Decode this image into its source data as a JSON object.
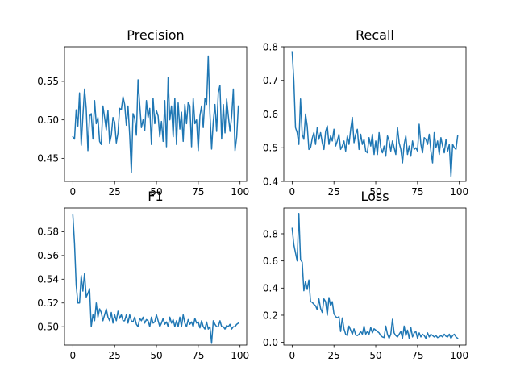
{
  "colors": {
    "line": "#1f77b4",
    "background": "#ffffff",
    "axes": "#000000"
  },
  "chart_data": [
    {
      "type": "line",
      "title": "Precision",
      "xlabel": "",
      "ylabel": "",
      "xlim": [
        -5,
        104
      ],
      "ylim": [
        0.42,
        0.595
      ],
      "xticks": [
        0,
        25,
        50,
        75,
        100
      ],
      "yticks": [
        0.45,
        0.5,
        0.55
      ],
      "ytick_labels": [
        "0.45",
        "0.50",
        "0.55"
      ],
      "grid": false,
      "x_start": 0,
      "y": [
        0.478,
        0.475,
        0.513,
        0.492,
        0.535,
        0.467,
        0.505,
        0.54,
        0.515,
        0.46,
        0.505,
        0.508,
        0.475,
        0.525,
        0.495,
        0.503,
        0.472,
        0.468,
        0.518,
        0.503,
        0.487,
        0.512,
        0.47,
        0.48,
        0.503,
        0.497,
        0.47,
        0.483,
        0.515,
        0.513,
        0.53,
        0.52,
        0.493,
        0.518,
        0.48,
        0.432,
        0.508,
        0.502,
        0.48,
        0.552,
        0.52,
        0.49,
        0.5,
        0.486,
        0.525,
        0.503,
        0.515,
        0.468,
        0.528,
        0.495,
        0.512,
        0.505,
        0.478,
        0.498,
        0.472,
        0.525,
        0.465,
        0.555,
        0.5,
        0.518,
        0.478,
        0.528,
        0.468,
        0.522,
        0.488,
        0.51,
        0.472,
        0.52,
        0.495,
        0.523,
        0.518,
        0.465,
        0.528,
        0.495,
        0.5,
        0.46,
        0.505,
        0.518,
        0.49,
        0.528,
        0.52,
        0.583,
        0.508,
        0.462,
        0.498,
        0.52,
        0.485,
        0.535,
        0.545,
        0.475,
        0.52,
        0.483,
        0.527,
        0.505,
        0.485,
        0.505,
        0.54,
        0.46,
        0.478,
        0.518
      ],
      "tick_labels_x": [
        "0",
        "25",
        "50",
        "75",
        "100"
      ]
    },
    {
      "type": "line",
      "title": "Recall",
      "xlabel": "",
      "ylabel": "",
      "xlim": [
        -5,
        104
      ],
      "ylim": [
        0.4,
        0.8
      ],
      "xticks": [
        0,
        25,
        50,
        75,
        100
      ],
      "yticks": [
        0.4,
        0.5,
        0.6,
        0.7,
        0.8
      ],
      "ytick_labels": [
        "0.4",
        "0.5",
        "0.6",
        "0.7",
        "0.8"
      ],
      "grid": false,
      "x_start": 0,
      "y": [
        0.785,
        0.7,
        0.56,
        0.545,
        0.51,
        0.645,
        0.54,
        0.525,
        0.6,
        0.565,
        0.495,
        0.5,
        0.528,
        0.545,
        0.51,
        0.56,
        0.525,
        0.545,
        0.515,
        0.495,
        0.548,
        0.565,
        0.51,
        0.535,
        0.52,
        0.555,
        0.505,
        0.52,
        0.54,
        0.495,
        0.505,
        0.52,
        0.49,
        0.535,
        0.51,
        0.555,
        0.59,
        0.515,
        0.54,
        0.555,
        0.495,
        0.54,
        0.51,
        0.525,
        0.49,
        0.485,
        0.53,
        0.505,
        0.54,
        0.48,
        0.52,
        0.48,
        0.545,
        0.5,
        0.485,
        0.505,
        0.475,
        0.535,
        0.52,
        0.49,
        0.52,
        0.5,
        0.48,
        0.56,
        0.515,
        0.495,
        0.455,
        0.51,
        0.535,
        0.48,
        0.505,
        0.475,
        0.52,
        0.495,
        0.5,
        0.49,
        0.57,
        0.51,
        0.485,
        0.53,
        0.525,
        0.51,
        0.54,
        0.49,
        0.455,
        0.545,
        0.5,
        0.52,
        0.48,
        0.53,
        0.505,
        0.485,
        0.525,
        0.49,
        0.51,
        0.415,
        0.51,
        0.5,
        0.495,
        0.535
      ],
      "tick_labels_x": [
        "0",
        "25",
        "50",
        "75",
        "100"
      ]
    },
    {
      "type": "line",
      "title": "F1",
      "xlabel": "",
      "ylabel": "",
      "xlim": [
        -5,
        104
      ],
      "ylim": [
        0.4845,
        0.6
      ],
      "xticks": [
        0,
        25,
        50,
        75,
        100
      ],
      "yticks": [
        0.5,
        0.52,
        0.54,
        0.56,
        0.58
      ],
      "ytick_labels": [
        "0.50",
        "0.52",
        "0.54",
        "0.56",
        "0.58"
      ],
      "grid": false,
      "x_start": 0,
      "y": [
        0.594,
        0.57,
        0.535,
        0.52,
        0.52,
        0.543,
        0.53,
        0.545,
        0.525,
        0.528,
        0.532,
        0.5,
        0.51,
        0.505,
        0.52,
        0.508,
        0.515,
        0.512,
        0.505,
        0.51,
        0.515,
        0.508,
        0.505,
        0.512,
        0.503,
        0.51,
        0.505,
        0.513,
        0.507,
        0.51,
        0.505,
        0.505,
        0.51,
        0.503,
        0.51,
        0.505,
        0.504,
        0.508,
        0.502,
        0.5,
        0.507,
        0.505,
        0.508,
        0.503,
        0.506,
        0.505,
        0.5,
        0.508,
        0.503,
        0.504,
        0.51,
        0.505,
        0.5,
        0.503,
        0.507,
        0.502,
        0.504,
        0.5,
        0.508,
        0.503,
        0.506,
        0.5,
        0.505,
        0.5,
        0.508,
        0.5,
        0.51,
        0.503,
        0.5,
        0.506,
        0.502,
        0.504,
        0.5,
        0.507,
        0.503,
        0.504,
        0.499,
        0.505,
        0.5,
        0.498,
        0.504,
        0.498,
        0.5,
        0.486,
        0.505,
        0.502,
        0.5,
        0.5,
        0.505,
        0.5,
        0.5,
        0.498,
        0.501,
        0.5,
        0.502,
        0.498,
        0.5,
        0.5,
        0.502,
        0.503
      ],
      "tick_labels_x": [
        "0",
        "25",
        "50",
        "75",
        "100"
      ]
    },
    {
      "type": "line",
      "title": "Loss",
      "xlabel": "",
      "ylabel": "",
      "xlim": [
        -5,
        104
      ],
      "ylim": [
        -0.02,
        0.99
      ],
      "xticks": [
        0,
        25,
        50,
        75,
        100
      ],
      "yticks": [
        0.0,
        0.2,
        0.4,
        0.6,
        0.8
      ],
      "ytick_labels": [
        "0.0",
        "0.2",
        "0.4",
        "0.6",
        "0.8"
      ],
      "grid": false,
      "x_start": 0,
      "y": [
        0.84,
        0.72,
        0.66,
        0.6,
        0.95,
        0.61,
        0.59,
        0.38,
        0.45,
        0.39,
        0.46,
        0.3,
        0.295,
        0.28,
        0.27,
        0.24,
        0.32,
        0.25,
        0.22,
        0.32,
        0.3,
        0.2,
        0.33,
        0.27,
        0.3,
        0.21,
        0.19,
        0.18,
        0.19,
        0.08,
        0.18,
        0.1,
        0.06,
        0.05,
        0.12,
        0.09,
        0.06,
        0.1,
        0.055,
        0.05,
        0.06,
        0.08,
        0.06,
        0.12,
        0.06,
        0.08,
        0.06,
        0.11,
        0.07,
        0.1,
        0.09,
        0.08,
        0.07,
        0.05,
        0.04,
        0.035,
        0.12,
        0.06,
        0.03,
        0.06,
        0.17,
        0.07,
        0.05,
        0.04,
        0.06,
        0.08,
        0.03,
        0.12,
        0.05,
        0.09,
        0.03,
        0.11,
        0.04,
        0.07,
        0.08,
        0.03,
        0.07,
        0.04,
        0.06,
        0.05,
        0.03,
        0.07,
        0.04,
        0.06,
        0.05,
        0.04,
        0.05,
        0.035,
        0.04,
        0.05,
        0.04,
        0.06,
        0.045,
        0.04,
        0.06,
        0.03,
        0.05,
        0.06,
        0.04,
        0.03
      ],
      "tick_labels_x": [
        "0",
        "25",
        "50",
        "75",
        "100"
      ]
    }
  ]
}
